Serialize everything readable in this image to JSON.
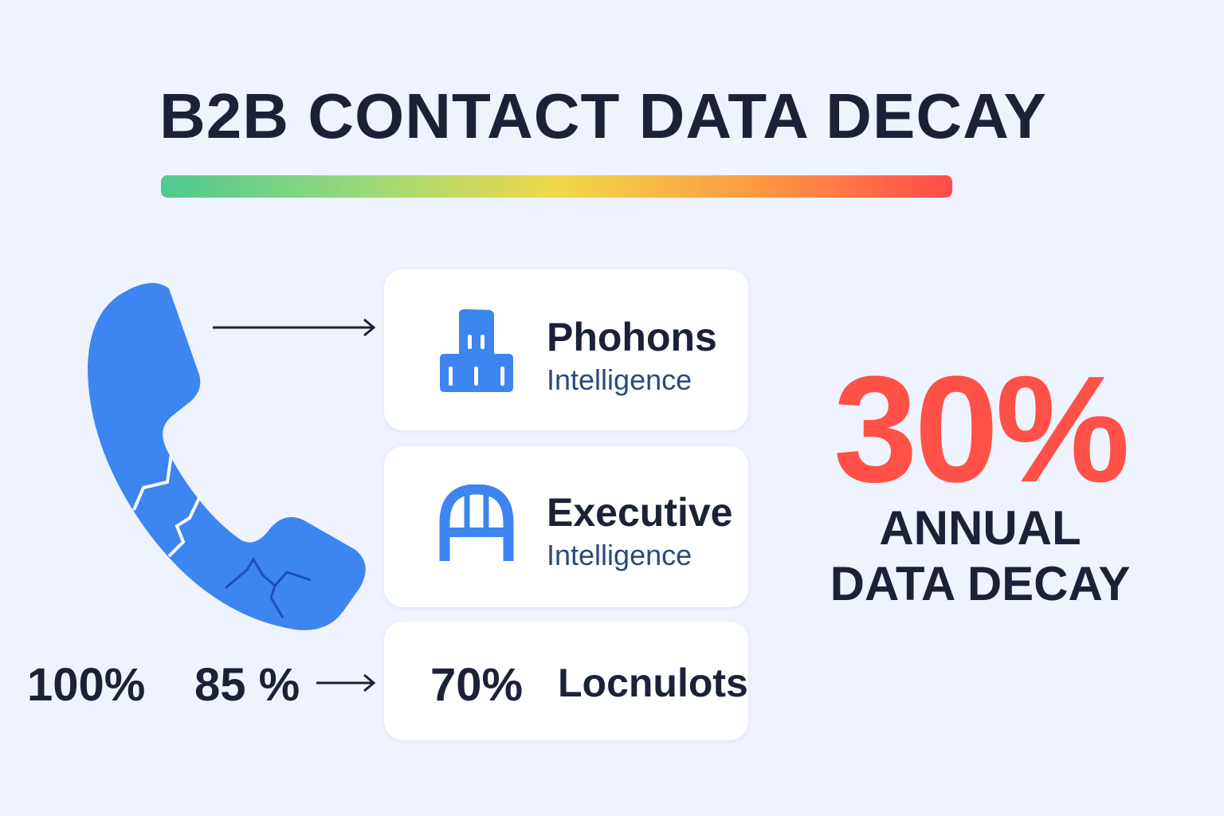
{
  "title": "B2B CONTACT DATA DECAY",
  "colors": {
    "background": "#eff3fd",
    "accent_blue": "#3d85f0",
    "text_navy": "#1b2238",
    "highlight_red": "#ff5148",
    "gradient": [
      "#4ec98f",
      "#f1d84a",
      "#fd9a43",
      "#ff4b4b"
    ]
  },
  "phone": {
    "icon": "cracked-phone-icon"
  },
  "cards": [
    {
      "icon": "building-icon",
      "name": "Phohons",
      "sub": "Intelligence"
    },
    {
      "icon": "arch-icon",
      "name": "Executive",
      "sub": "Intelligence"
    },
    {
      "value": "70%",
      "name": "Locnulots"
    }
  ],
  "percent_left": [
    "100%",
    "85 %"
  ],
  "stat": {
    "value": "30%",
    "line1": "ANNUAL",
    "line2": "DATA DECAY"
  }
}
